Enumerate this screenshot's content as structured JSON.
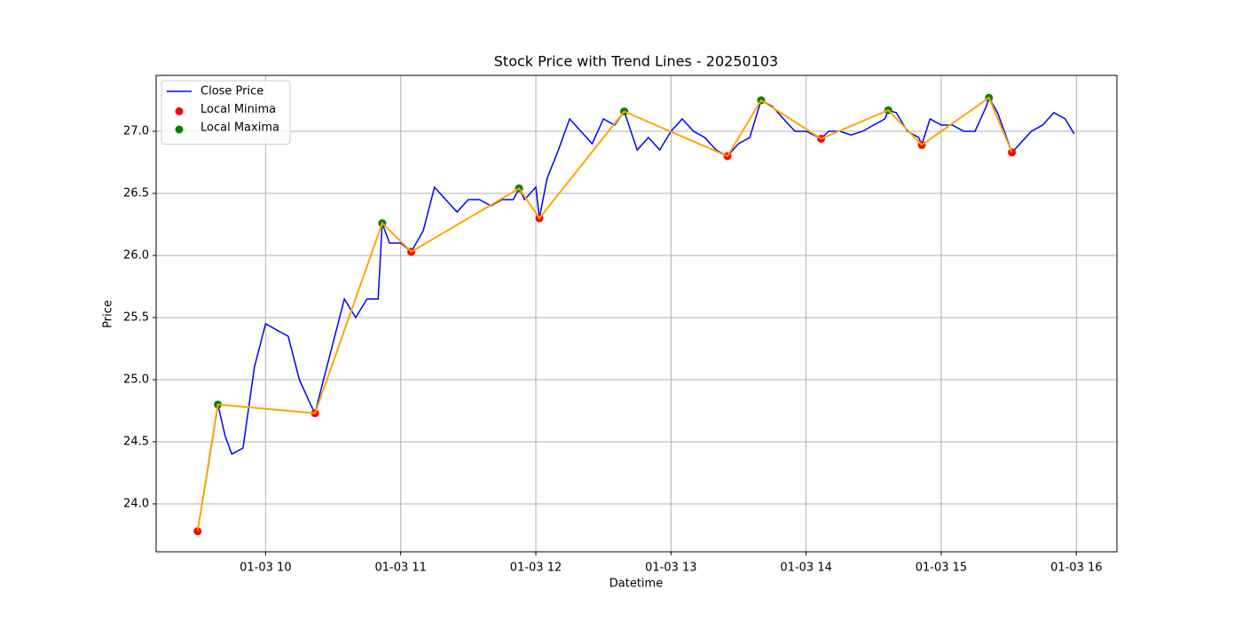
{
  "chart_data": {
    "type": "line",
    "title": "Stock Price with Trend Lines - 20250103",
    "xlabel": "Datetime",
    "ylabel": "Price",
    "xlim": [
      9.19,
      16.3
    ],
    "ylim": [
      23.614,
      27.45
    ],
    "xticks": [
      {
        "value": 10,
        "label": "01-03 10"
      },
      {
        "value": 11,
        "label": "01-03 11"
      },
      {
        "value": 12,
        "label": "01-03 12"
      },
      {
        "value": 13,
        "label": "01-03 13"
      },
      {
        "value": 14,
        "label": "01-03 14"
      },
      {
        "value": 15,
        "label": "01-03 15"
      },
      {
        "value": 16,
        "label": "01-03 16"
      }
    ],
    "yticks": [
      {
        "value": 24,
        "label": "24.0"
      },
      {
        "value": 24.5,
        "label": "24.5"
      },
      {
        "value": 25,
        "label": "25.0"
      },
      {
        "value": 25.5,
        "label": "25.5"
      },
      {
        "value": 26,
        "label": "26.0"
      },
      {
        "value": 26.5,
        "label": "26.5"
      },
      {
        "value": 27,
        "label": "27.0"
      }
    ],
    "grid": true,
    "legend": "upper left",
    "series": [
      {
        "name": "Close Price",
        "type": "line",
        "color": "#0000ff",
        "x": [
          9.497,
          9.583,
          9.647,
          9.7,
          9.75,
          9.833,
          9.917,
          10.0,
          10.083,
          10.167,
          10.25,
          10.333,
          10.366,
          10.417,
          10.5,
          10.583,
          10.667,
          10.75,
          10.833,
          10.863,
          10.917,
          11.0,
          11.078,
          11.167,
          11.25,
          11.333,
          11.417,
          11.5,
          11.583,
          11.667,
          11.75,
          11.833,
          11.876,
          11.917,
          12.0,
          12.026,
          12.083,
          12.167,
          12.25,
          12.333,
          12.417,
          12.5,
          12.583,
          12.654,
          12.75,
          12.833,
          12.917,
          13.0,
          13.083,
          13.167,
          13.25,
          13.333,
          13.418,
          13.5,
          13.583,
          13.667,
          13.75,
          13.833,
          13.917,
          14.0,
          14.111,
          14.167,
          14.25,
          14.333,
          14.417,
          14.5,
          14.583,
          14.608,
          14.667,
          14.75,
          14.833,
          14.856,
          14.917,
          15.0,
          15.083,
          15.167,
          15.25,
          15.333,
          15.353,
          15.417,
          15.5,
          15.523,
          15.583,
          15.667,
          15.75,
          15.833,
          15.917,
          15.983
        ],
        "values": [
          23.78,
          24.35,
          24.8,
          24.55,
          24.4,
          24.45,
          25.1,
          25.45,
          25.4,
          25.35,
          25.0,
          24.8,
          24.73,
          24.95,
          25.3,
          25.65,
          25.5,
          25.65,
          25.65,
          26.26,
          26.1,
          26.1,
          26.03,
          26.2,
          26.55,
          26.45,
          26.35,
          26.45,
          26.45,
          26.4,
          26.45,
          26.45,
          26.54,
          26.45,
          26.55,
          26.3,
          26.62,
          26.85,
          27.1,
          27.0,
          26.9,
          27.1,
          27.05,
          27.16,
          26.85,
          26.95,
          26.85,
          27.0,
          27.1,
          27.0,
          26.95,
          26.85,
          26.8,
          26.9,
          26.95,
          27.25,
          27.2,
          27.1,
          27.0,
          27.0,
          26.94,
          27.0,
          27.0,
          26.97,
          27.0,
          27.05,
          27.1,
          27.17,
          27.15,
          27.0,
          26.95,
          26.89,
          27.1,
          27.05,
          27.05,
          27.0,
          27.0,
          27.2,
          27.27,
          27.15,
          26.9,
          26.83,
          26.9,
          27.0,
          27.05,
          27.15,
          27.1,
          26.98
        ]
      },
      {
        "name": "Local Minima",
        "type": "scatter",
        "color": "#ff0000",
        "x": [
          9.497,
          10.366,
          11.078,
          12.026,
          13.418,
          14.111,
          14.856,
          15.523
        ],
        "values": [
          23.78,
          24.73,
          26.03,
          26.3,
          26.8,
          26.94,
          26.89,
          26.83
        ]
      },
      {
        "name": "Local Maxima",
        "type": "scatter",
        "color": "#008000",
        "x": [
          9.647,
          10.863,
          11.876,
          12.654,
          13.667,
          14.608,
          15.353
        ],
        "values": [
          24.8,
          26.26,
          26.54,
          27.16,
          27.25,
          27.17,
          27.27
        ]
      },
      {
        "type": "line",
        "color": "#ffa500",
        "x": [
          9.497,
          9.647,
          10.366,
          10.863,
          11.078,
          11.876,
          12.026,
          12.654,
          13.418,
          13.667,
          14.111,
          14.608,
          14.856,
          15.353,
          15.523
        ],
        "values": [
          23.78,
          24.8,
          24.73,
          26.26,
          26.03,
          26.54,
          26.3,
          27.16,
          26.8,
          27.25,
          26.94,
          27.17,
          26.89,
          27.27,
          26.83
        ]
      }
    ]
  }
}
